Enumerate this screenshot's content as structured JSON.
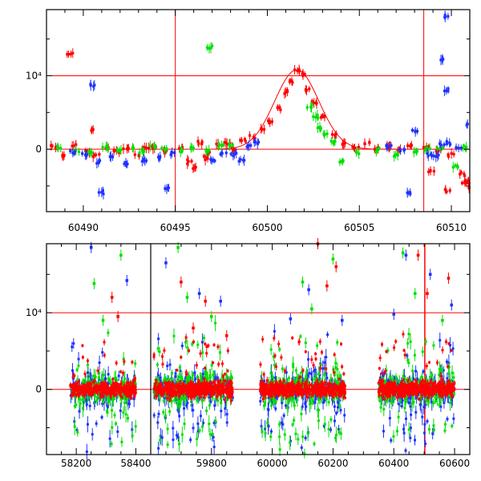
{
  "chart_data": [
    {
      "type": "scatter",
      "panel": "top",
      "title": "",
      "xlabel": "",
      "ylabel": "",
      "xlim": [
        60488,
        60511
      ],
      "ylim": [
        -8500,
        19000
      ],
      "grid": false,
      "y_ticks": [
        {
          "value": 0,
          "label": "0"
        },
        {
          "value": 10000,
          "label": "10⁴"
        }
      ],
      "x_ticks": [
        {
          "value": 60490,
          "label": "60490"
        },
        {
          "value": 60495,
          "label": "60495"
        },
        {
          "value": 60500,
          "label": "60500"
        },
        {
          "value": 60505,
          "label": "60505"
        },
        {
          "value": 60510,
          "label": "60510"
        }
      ],
      "reference_lines": {
        "horizontal": [
          0,
          10000
        ],
        "vertical": [
          60495,
          60508.5
        ]
      },
      "model_curve": {
        "peak_x": 60501.6,
        "peak_y": 10800,
        "sigma": 1.2
      },
      "series": [
        {
          "color": "#ff0000",
          "x": [
            60488.4,
            60489.0,
            60489.5,
            60490.2,
            60490.7,
            60491.3,
            60491.8,
            60492.3,
            60492.9,
            60493.4,
            60493.9,
            60494.5,
            60495.3,
            60495.8,
            60496.3,
            60496.8,
            60497.3,
            60497.8,
            60498.2,
            60498.7,
            60499.2,
            60499.7,
            60500.2,
            60500.6,
            60501.0,
            60501.3,
            60501.6,
            60501.9,
            60502.2,
            60502.6,
            60503.0,
            60503.6,
            60504.2,
            60504.8,
            60505.4,
            60506.0,
            60506.6,
            60507.2,
            60507.8,
            60508.6,
            60509.3,
            60510.0,
            60510.6,
            60510.9,
            60511.0,
            60489.3,
            60490.6,
            60496.1,
            60496.6,
            60508.9,
            60509.8,
            60510.7
          ],
          "y": [
            300,
            -900,
            500,
            -500,
            -800,
            200,
            -300,
            100,
            -800,
            200,
            300,
            -300,
            200,
            -1600,
            800,
            -500,
            600,
            900,
            0,
            1200,
            1800,
            2700,
            3800,
            5600,
            7600,
            9200,
            10800,
            10300,
            8200,
            6400,
            4400,
            1900,
            800,
            300,
            900,
            100,
            400,
            -200,
            500,
            300,
            -200,
            -900,
            -3400,
            -4400,
            -5300,
            13000,
            2600,
            -2500,
            -1200,
            -3000,
            -5600,
            -4600
          ]
        },
        {
          "color": "#00e000",
          "x": [
            60488.6,
            60489.6,
            60490.4,
            60491.2,
            60492.0,
            60492.6,
            60493.2,
            60493.8,
            60494.4,
            60495.2,
            60495.9,
            60496.7,
            60497.5,
            60498.1,
            60502.3,
            60502.6,
            60502.9,
            60503.2,
            60503.6,
            60504.0,
            60505.0,
            60506.0,
            60507.0,
            60508.0,
            60508.7,
            60509.4,
            60510.2,
            60510.8,
            60496.9
          ],
          "y": [
            200,
            -200,
            -400,
            300,
            -100,
            100,
            -300,
            400,
            100,
            -200,
            200,
            -300,
            600,
            500,
            5800,
            4400,
            2900,
            2000,
            1000,
            -1600,
            -400,
            -200,
            -800,
            -400,
            -100,
            200,
            -2400,
            200,
            13800
          ]
        },
        {
          "color": "#1e32ff",
          "x": [
            60489.4,
            60490.1,
            60490.9,
            60491.6,
            60492.4,
            60493.3,
            60494.1,
            60494.9,
            60497.0,
            60497.6,
            60498.2,
            60498.6,
            60499.0,
            60499.4,
            60506.6,
            60507.3,
            60508.0,
            60508.8,
            60509.2,
            60509.5,
            60509.8,
            60510.4,
            60510.9,
            60490.5,
            60491.0,
            60494.6,
            60507.7,
            60509.8,
            60509.6,
            60509.7
          ],
          "y": [
            -400,
            -700,
            -1800,
            -1000,
            -2000,
            -1600,
            -1100,
            -600,
            -1500,
            -600,
            -800,
            -1600,
            300,
            900,
            300,
            -100,
            2500,
            -800,
            -1000,
            600,
            800,
            200,
            3400,
            8700,
            -5800,
            -5300,
            -6000,
            18000,
            12200,
            8000
          ]
        }
      ]
    },
    {
      "type": "scatter",
      "panel": "bottom",
      "title": "",
      "xlabel": "",
      "ylabel": "",
      "xlim": [
        58100,
        60650
      ],
      "ylim": [
        -8500,
        19000
      ],
      "grid": false,
      "y_ticks": [
        {
          "value": 0,
          "label": "0"
        },
        {
          "value": 10000,
          "label": "10⁴"
        }
      ],
      "x_ticks": [
        {
          "value": 58200,
          "label": "58200"
        },
        {
          "value": 58400,
          "label": "58400"
        },
        {
          "value": 59800,
          "label": "59800"
        },
        {
          "value": 60000,
          "label": "60000"
        },
        {
          "value": 60200,
          "label": "60200"
        },
        {
          "value": 60400,
          "label": "60400"
        },
        {
          "value": 60600,
          "label": "60600"
        }
      ],
      "axis_break": {
        "x": 58450,
        "resume_at": 59600
      },
      "reference_lines": {
        "horizontal": [
          0,
          10000
        ],
        "vertical": [
          60502
        ]
      },
      "seasons": [
        [
          58180,
          58400
        ],
        [
          59610,
          59870
        ],
        [
          59960,
          60240
        ],
        [
          60350,
          60600
        ]
      ],
      "series": [
        {
          "color": "#ff0000",
          "outliers_x": [
            58320,
            58340,
            59700,
            59740,
            59780,
            59850,
            60150,
            60180,
            60210,
            60480,
            60510,
            60580
          ],
          "outliers_y": [
            12000,
            9500,
            14000,
            8000,
            11500,
            7000,
            19000,
            13500,
            16000,
            17500,
            12500,
            14500
          ]
        },
        {
          "color": "#00e000",
          "outliers_x": [
            58260,
            58290,
            58350,
            59690,
            59720,
            59800,
            60100,
            60130,
            60200,
            60430,
            60470,
            60560
          ],
          "outliers_y": [
            13800,
            9000,
            17500,
            18500,
            12000,
            9500,
            14000,
            10500,
            17000,
            17800,
            12500,
            9000
          ]
        },
        {
          "color": "#1e32ff",
          "outliers_x": [
            58250,
            58370,
            59650,
            59760,
            59830,
            60060,
            60120,
            60230,
            60400,
            60440,
            60520,
            60590
          ],
          "outliers_y": [
            18500,
            14200,
            16500,
            12500,
            11500,
            9200,
            13000,
            9000,
            9800,
            17500,
            15000,
            11000
          ]
        }
      ]
    }
  ]
}
